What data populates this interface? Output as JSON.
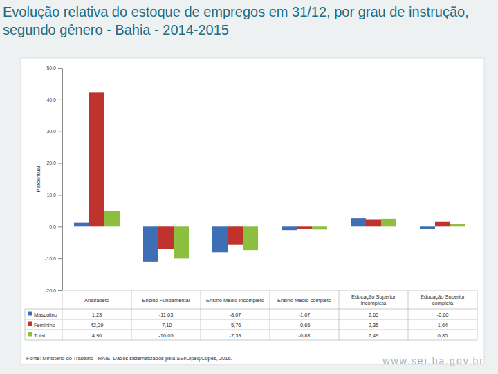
{
  "chart_data": {
    "type": "bar",
    "title": "Evolução relativa do estoque de empregos em 31/12, por grau de instrução, segundo gênero - Bahia - 2014-2015",
    "y_label": "Percentual",
    "categories": [
      "Analfabeto",
      "Ensino Fundamental",
      "Ensino Médio incompleto",
      "Ensino Médio completo",
      "Educação Superior incompleta",
      "Educação Superior completa"
    ],
    "series": [
      {
        "name": "Masculino",
        "color": "#3e6eb4",
        "values": [
          1.23,
          -11.03,
          -8.07,
          -1.07,
          2.65,
          -0.6
        ],
        "value_labels": [
          "1,23",
          "-11,03",
          "-8,07",
          "-1,07",
          "2,65",
          "-0,60"
        ]
      },
      {
        "name": "Feminino",
        "color": "#c0322d",
        "values": [
          42.29,
          -7.1,
          -5.76,
          -0.65,
          2.35,
          1.64
        ],
        "value_labels": [
          "42,29",
          "-7,10",
          "-5,76",
          "-0,65",
          "2,35",
          "1,64"
        ]
      },
      {
        "name": "Total",
        "color": "#8cbf3f",
        "values": [
          4.96,
          -10.05,
          -7.39,
          -0.88,
          2.49,
          0.8
        ],
        "value_labels": [
          "4,96",
          "-10,05",
          "-7,39",
          "-0,88",
          "2,49",
          "0,80"
        ]
      }
    ],
    "ylim": [
      -20,
      50
    ],
    "yticks": [
      {
        "value": -20,
        "label": "-20,0"
      },
      {
        "value": -10,
        "label": "-10,0"
      },
      {
        "value": 0,
        "label": "0,0"
      },
      {
        "value": 10,
        "label": "10,0"
      },
      {
        "value": 20,
        "label": "20,0"
      },
      {
        "value": 30,
        "label": "30,0"
      },
      {
        "value": 40,
        "label": "40,0"
      },
      {
        "value": 50,
        "label": "50,0"
      }
    ],
    "grid": false,
    "annotations": [
      "Fonte: Ministério do Trabalho - RAIS. Dados sistematizados pela SEI/Dipeq/Copes, 2016.",
      "www.sei.ba.gov.br"
    ]
  }
}
